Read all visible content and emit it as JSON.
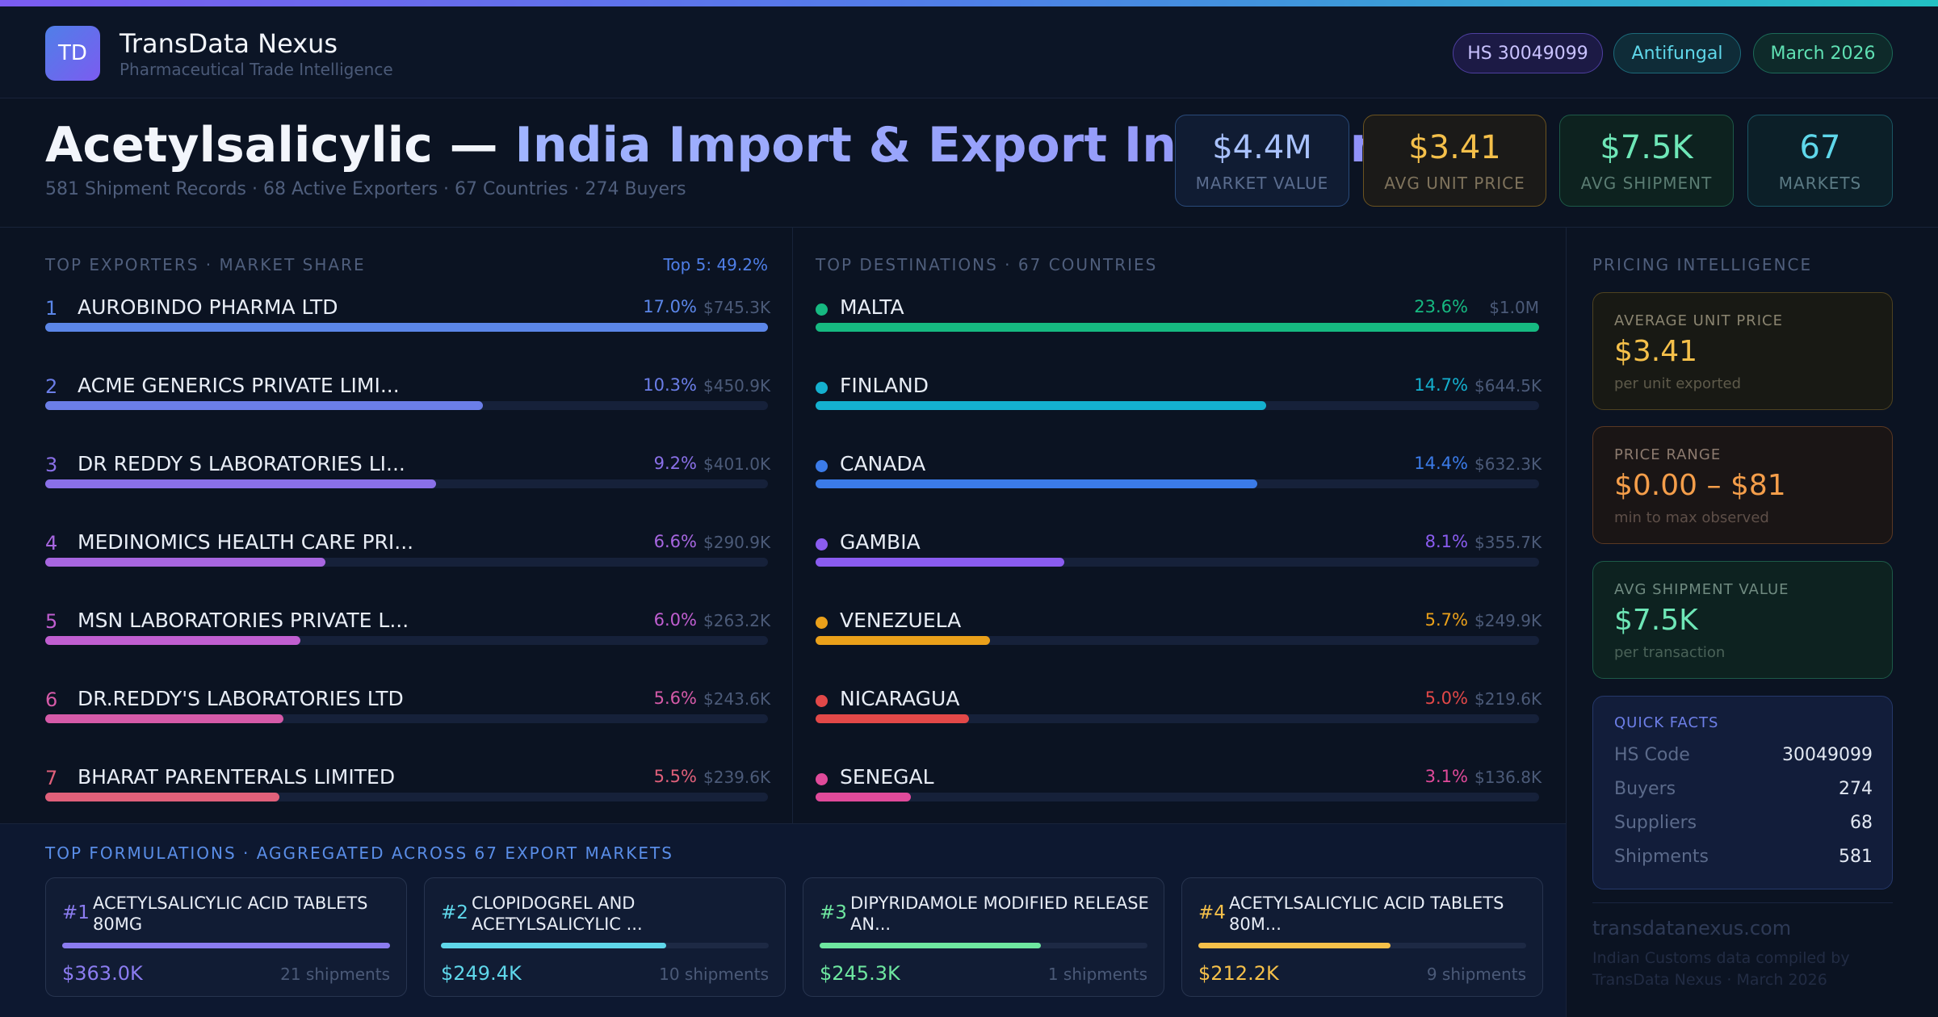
{
  "header": {
    "logo_text": "TD",
    "brand_name": "TransData Nexus",
    "brand_sub": "Pharmaceutical Trade Intelligence",
    "pills": {
      "hs": "HS 30049099",
      "category": "Antifungal",
      "date": "March 2026"
    }
  },
  "hero": {
    "title_part1": "Acetylsalicylic —",
    "title_part2": "India Import & Export Intelligence",
    "subtitle": "581 Shipment Records · 68 Active Exporters · 67 Countries · 274 Buyers"
  },
  "kpis": [
    {
      "value": "$4.4M",
      "label": "MARKET VALUE"
    },
    {
      "value": "$3.41",
      "label": "AVG UNIT PRICE"
    },
    {
      "value": "$7.5K",
      "label": "AVG SHIPMENT"
    },
    {
      "value": "67",
      "label": "MARKETS"
    }
  ],
  "exporters": {
    "title": "TOP EXPORTERS · MARKET SHARE",
    "top5": "Top 5: 49.2%",
    "items": [
      {
        "rank": "1",
        "name": "AUROBINDO PHARMA LTD",
        "pct": "17.0%",
        "amount": "$745.3K",
        "share": 17.0,
        "color": "#5b86e8"
      },
      {
        "rank": "2",
        "name": "ACME GENERICS PRIVATE LIMI...",
        "pct": "10.3%",
        "amount": "$450.9K",
        "share": 10.3,
        "color": "#6b7ee8"
      },
      {
        "rank": "3",
        "name": "DR REDDY S LABORATORIES LI...",
        "pct": "9.2%",
        "amount": "$401.0K",
        "share": 9.2,
        "color": "#8a70e8"
      },
      {
        "rank": "4",
        "name": "MEDINOMICS HEALTH CARE PRI...",
        "pct": "6.6%",
        "amount": "$290.9K",
        "share": 6.6,
        "color": "#a766e0"
      },
      {
        "rank": "5",
        "name": "MSN LABORATORIES PRIVATE L...",
        "pct": "6.0%",
        "amount": "$263.2K",
        "share": 6.0,
        "color": "#c05ed0"
      },
      {
        "rank": "6",
        "name": "DR.REDDY'S LABORATORIES LTD",
        "pct": "5.6%",
        "amount": "$243.6K",
        "share": 5.6,
        "color": "#d55aa8"
      },
      {
        "rank": "7",
        "name": "BHARAT PARENTERALS LIMITED",
        "pct": "5.5%",
        "amount": "$239.6K",
        "share": 5.5,
        "color": "#e0607a"
      }
    ]
  },
  "destinations": {
    "title": "TOP DESTINATIONS · 67 COUNTRIES",
    "items": [
      {
        "name": "MALTA",
        "pct": "23.6%",
        "amount": "$1.0M",
        "share": 23.6,
        "color": "#16b981"
      },
      {
        "name": "FINLAND",
        "pct": "14.7%",
        "amount": "$644.5K",
        "share": 14.7,
        "color": "#14b0cf"
      },
      {
        "name": "CANADA",
        "pct": "14.4%",
        "amount": "$632.3K",
        "share": 14.4,
        "color": "#3b7be8"
      },
      {
        "name": "GAMBIA",
        "pct": "8.1%",
        "amount": "$355.7K",
        "share": 8.1,
        "color": "#8a5cf0"
      },
      {
        "name": "VENEZUELA",
        "pct": "5.7%",
        "amount": "$249.9K",
        "share": 5.7,
        "color": "#eaa01a"
      },
      {
        "name": "NICARAGUA",
        "pct": "5.0%",
        "amount": "$219.6K",
        "share": 5.0,
        "color": "#e24848"
      },
      {
        "name": "SENEGAL",
        "pct": "3.1%",
        "amount": "$136.8K",
        "share": 3.1,
        "color": "#e04a9a"
      }
    ]
  },
  "pricing": {
    "title": "PRICING INTELLIGENCE",
    "cards": [
      {
        "label": "AVERAGE UNIT PRICE",
        "value": "$3.41",
        "sub": "per unit exported"
      },
      {
        "label": "PRICE RANGE",
        "value": "$0.00 – $81",
        "sub": "min to max observed"
      },
      {
        "label": "AVG SHIPMENT VALUE",
        "value": "$7.5K",
        "sub": "per transaction"
      }
    ],
    "quick_facts": {
      "title": "QUICK FACTS",
      "rows": [
        {
          "key": "HS Code",
          "value": "30049099"
        },
        {
          "key": "Buyers",
          "value": "274"
        },
        {
          "key": "Suppliers",
          "value": "68"
        },
        {
          "key": "Shipments",
          "value": "581"
        }
      ]
    },
    "footer_site": "transdatanexus.com",
    "footer_note": "Indian Customs data compiled by TransData Nexus · March 2026"
  },
  "formulations": {
    "title": "TOP FORMULATIONS · AGGREGATED ACROSS 67 EXPORT MARKETS",
    "items": [
      {
        "rank": "#1",
        "name": "ACETYLSALICYLIC ACID TABLETS 80MG",
        "value": "$363.0K",
        "shipments": "21 shipments",
        "fill": 1.0,
        "color": "#8b7cf0"
      },
      {
        "rank": "#2",
        "name": "CLOPIDOGREL AND ACETYLSALICYLIC ...",
        "value": "$249.4K",
        "shipments": "10 shipments",
        "fill": 0.687,
        "color": "#5fd7ea"
      },
      {
        "rank": "#3",
        "name": "DIPYRIDAMOLE MODIFIED RELEASE AN...",
        "value": "$245.3K",
        "shipments": "1 shipments",
        "fill": 0.676,
        "color": "#6ee7a0"
      },
      {
        "rank": "#4",
        "name": "ACETYLSALICYLIC ACID TABLETS 80M...",
        "value": "$212.2K",
        "shipments": "9 shipments",
        "fill": 0.585,
        "color": "#f5c04a"
      }
    ]
  },
  "colors": {
    "accent": "#4f7fe8",
    "brand_purple": "#7b5cf0",
    "gold": "#f5c04a",
    "orange": "#f59e4a",
    "green": "#6ee7b7",
    "cyan": "#5fd7ea"
  }
}
